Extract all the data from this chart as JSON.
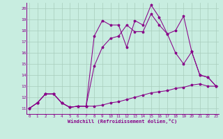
{
  "xlabel": "Windchill (Refroidissement éolien,°C)",
  "bg_color": "#c8ede0",
  "line_color": "#880088",
  "grid_color": "#a8ccbc",
  "xlim": [
    -0.3,
    23.3
  ],
  "ylim": [
    10.5,
    20.5
  ],
  "yticks": [
    11,
    12,
    13,
    14,
    15,
    16,
    17,
    18,
    19,
    20
  ],
  "xticks": [
    0,
    1,
    2,
    3,
    4,
    5,
    6,
    7,
    8,
    9,
    10,
    11,
    12,
    13,
    14,
    15,
    16,
    17,
    18,
    19,
    20,
    21,
    22,
    23
  ],
  "line1_x": [
    0,
    1,
    2,
    3,
    4,
    5,
    6,
    7,
    8,
    9,
    10,
    11,
    12,
    13,
    14,
    15,
    16,
    17,
    18,
    19,
    20,
    21,
    22,
    23
  ],
  "line1_y": [
    11.0,
    11.5,
    12.3,
    12.3,
    11.5,
    11.1,
    11.2,
    11.2,
    11.2,
    11.3,
    11.5,
    11.6,
    11.8,
    12.0,
    12.2,
    12.4,
    12.5,
    12.6,
    12.8,
    12.9,
    13.1,
    13.2,
    13.0,
    13.0
  ],
  "line2_x": [
    0,
    1,
    2,
    3,
    4,
    5,
    6,
    7,
    8,
    9,
    10,
    11,
    12,
    13,
    14,
    15,
    16,
    17,
    18,
    19,
    20,
    21,
    22,
    23
  ],
  "line2_y": [
    11.0,
    11.5,
    12.3,
    12.3,
    11.5,
    11.1,
    11.2,
    11.2,
    14.8,
    16.5,
    17.3,
    17.5,
    18.5,
    17.9,
    17.9,
    19.5,
    18.5,
    17.7,
    16.0,
    15.0,
    16.1,
    14.0,
    13.8,
    13.0
  ],
  "line3_x": [
    0,
    1,
    2,
    3,
    4,
    5,
    6,
    7,
    8,
    9,
    10,
    11,
    12,
    13,
    14,
    15,
    16,
    17,
    18,
    19,
    20,
    21,
    22,
    23
  ],
  "line3_y": [
    11.0,
    11.5,
    12.3,
    12.3,
    11.5,
    11.1,
    11.2,
    11.2,
    17.5,
    18.9,
    18.5,
    18.5,
    16.5,
    18.9,
    18.5,
    20.3,
    19.2,
    17.7,
    18.0,
    19.3,
    16.1,
    14.0,
    13.8,
    13.0
  ]
}
